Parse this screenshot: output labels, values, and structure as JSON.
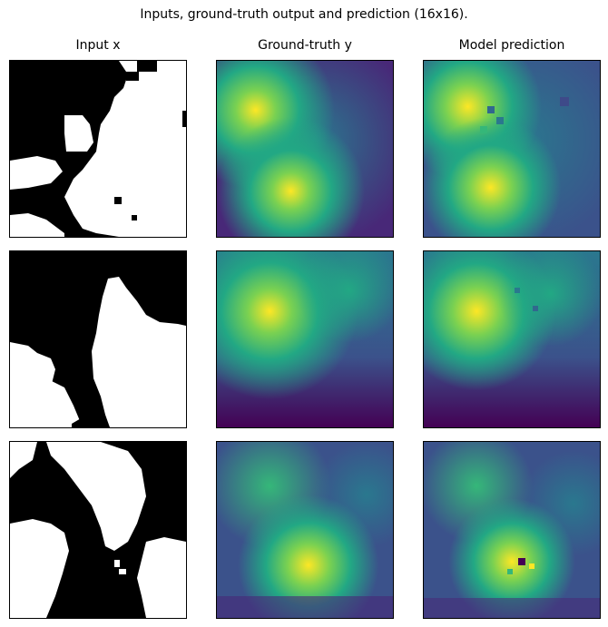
{
  "figure": {
    "title": "Inputs, ground-truth output and prediction (16x16).",
    "columns": [
      {
        "title": "Input x"
      },
      {
        "title": "Ground-truth y"
      },
      {
        "title": "Model prediction"
      }
    ],
    "rows": [
      {
        "row_index": 1
      },
      {
        "row_index": 2
      },
      {
        "row_index": 3
      }
    ],
    "colors": {
      "binary_off": "#000000",
      "binary_on": "#ffffff",
      "viridis_low": "#440154",
      "viridis_mid": "#21918c",
      "viridis_high": "#fde725"
    }
  }
}
